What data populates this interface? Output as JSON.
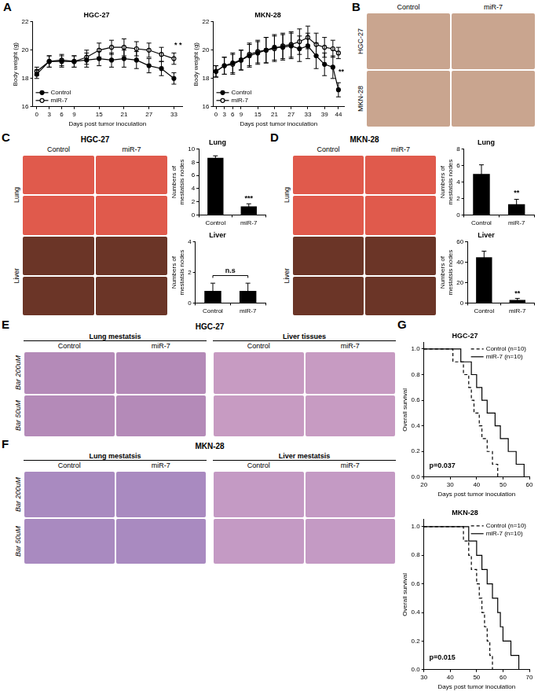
{
  "letters": [
    "A",
    "B",
    "C",
    "D",
    "E",
    "F",
    "G"
  ],
  "images": [
    {
      "groups": [
        {
          "columns": [
            "Control",
            "miR-7"
          ],
          "color": "#c9a58f"
        }
      ],
      "rows": [
        {
          "label": "HGC-27",
          "count": 1
        },
        {
          "label": "MKN-28",
          "count": 1
        }
      ]
    },
    {
      "title": "HGC-27",
      "groups": [
        {
          "columns": [
            "Control",
            "miR-7"
          ]
        }
      ],
      "rows": [
        {
          "label": "Lung",
          "count": 2,
          "color": "#e05a4c"
        },
        {
          "label": "Liver",
          "count": 2,
          "color": "#6b3527"
        }
      ]
    },
    {
      "title": "MKN-28",
      "groups": [
        {
          "columns": [
            "Control",
            "miR-7"
          ]
        }
      ],
      "rows": [
        {
          "label": "Lung",
          "count": 2,
          "color": "#e05a4c"
        },
        {
          "label": "Liver",
          "count": 2,
          "color": "#6b3527"
        }
      ]
    },
    {
      "title": "HGC-27",
      "groups": [
        {
          "heading": "Lung mestatsis",
          "columns": [
            "Control",
            "miR-7"
          ],
          "color": "#b48ab8"
        },
        {
          "heading": "Liver tissues",
          "columns": [
            "Control",
            "miR-7"
          ],
          "color": "#c79bc2"
        }
      ],
      "rows": [
        {
          "label": "Bar 200uM",
          "count": 1
        },
        {
          "label": "Bar 50uM",
          "count": 1
        }
      ]
    },
    {
      "title": "MKN-28",
      "groups": [
        {
          "heading": "Lung mestatsis",
          "columns": [
            "Control",
            "miR-7"
          ],
          "color": "#a98ac0"
        },
        {
          "heading": "Liver mestatsis",
          "columns": [
            "Control",
            "miR-7"
          ],
          "color": "#c49ac4"
        }
      ],
      "rows": [
        {
          "label": "Bar 200uM",
          "count": 1
        },
        {
          "label": "Bar 50uM",
          "count": 1
        }
      ]
    }
  ],
  "chart_data": [
    {
      "type": "line",
      "title": "HGC-27",
      "x_label": "Days post tumor inoculation",
      "y_label": "Body weight (g)",
      "x": [
        0,
        3,
        6,
        9,
        12,
        15,
        18,
        21,
        24,
        27,
        30,
        33
      ],
      "series": [
        {
          "name": "Control",
          "color": "#000000",
          "marker": "circle",
          "line_style": "solid",
          "values": [
            18.3,
            19.2,
            19.2,
            19.2,
            19.3,
            19.4,
            19.3,
            19.4,
            19.3,
            18.9,
            18.7,
            18.0
          ],
          "error": [
            0.3,
            0.4,
            0.4,
            0.4,
            0.5,
            0.5,
            0.5,
            0.6,
            0.6,
            0.5,
            0.5,
            0.4
          ]
        },
        {
          "name": "miR-7",
          "color": "#000000",
          "marker": "open_circle",
          "line_style": "solid",
          "values": [
            18.5,
            19.2,
            19.3,
            19.2,
            19.5,
            20.0,
            20.2,
            20.2,
            20.1,
            20.0,
            19.7,
            19.4
          ],
          "error": [
            0.3,
            0.4,
            0.4,
            0.4,
            0.5,
            0.5,
            0.5,
            0.6,
            0.5,
            0.5,
            0.5,
            0.4
          ]
        }
      ],
      "xlim": [
        -1,
        35
      ],
      "xticks": [
        0,
        3,
        6,
        9,
        15,
        21,
        27,
        33
      ],
      "ylim": [
        16,
        22
      ],
      "yticks": [
        16,
        18,
        20,
        22
      ],
      "grid": false,
      "legend": "lower left",
      "annotations": [
        {
          "text": "* *",
          "x": 34,
          "y": 20.1
        }
      ]
    },
    {
      "type": "line",
      "title": "MKN-28",
      "x_label": "Days post tumor inoculation",
      "y_label": "Body weight (g)",
      "x": [
        0,
        3,
        6,
        9,
        12,
        15,
        18,
        21,
        24,
        27,
        30,
        33,
        36,
        39,
        42,
        44
      ],
      "series": [
        {
          "name": "Control",
          "color": "#000000",
          "marker": "circle",
          "line_style": "solid",
          "values": [
            18.5,
            18.9,
            19.1,
            19.3,
            19.6,
            19.8,
            20.0,
            20.2,
            20.2,
            20.3,
            20.1,
            20.3,
            19.6,
            19.0,
            18.8,
            17.2
          ],
          "error": [
            0.4,
            0.6,
            0.7,
            0.7,
            0.8,
            0.8,
            0.9,
            0.9,
            0.9,
            0.9,
            0.9,
            0.9,
            0.9,
            0.8,
            0.8,
            0.5
          ]
        },
        {
          "name": "miR-7",
          "color": "#000000",
          "marker": "open_circle",
          "line_style": "solid",
          "values": [
            18.5,
            18.9,
            19.0,
            19.3,
            19.7,
            19.9,
            20.0,
            20.1,
            20.3,
            20.4,
            20.6,
            20.9,
            20.4,
            20.2,
            20.1,
            19.8
          ],
          "error": [
            0.4,
            0.6,
            0.7,
            0.7,
            0.8,
            0.8,
            0.9,
            0.9,
            0.9,
            0.9,
            0.9,
            0.8,
            0.8,
            0.7,
            0.6,
            0.4
          ]
        }
      ],
      "xlim": [
        -1,
        46
      ],
      "xticks": [
        0,
        3,
        6,
        9,
        15,
        21,
        27,
        33,
        39,
        44
      ],
      "ylim": [
        16,
        22
      ],
      "yticks": [
        16,
        18,
        20,
        22
      ],
      "grid": false,
      "legend": "lower left",
      "annotations": [
        {
          "text": "**",
          "x": 45,
          "y": 18.2
        }
      ]
    },
    {
      "type": "bar",
      "title": "Lung",
      "y_label": "Numbers of mestatsis nodes",
      "categories": [
        "Control",
        "miR-7"
      ],
      "values": [
        8.7,
        1.3
      ],
      "error": [
        0.3,
        0.4
      ],
      "color": "#000000",
      "ylim": [
        0,
        10
      ],
      "yticks": [
        0,
        2,
        4,
        6,
        8,
        10
      ],
      "grid": false,
      "annotations": [
        {
          "text": "***",
          "x": "miR-7",
          "y": 2.0
        }
      ]
    },
    {
      "type": "bar",
      "title": "Liver",
      "y_label": "Numbers of mestatsis nodes",
      "categories": [
        "Control",
        "miR-7"
      ],
      "values": [
        0.8,
        0.8
      ],
      "error": [
        0.5,
        0.5
      ],
      "color": "#000000",
      "ylim": [
        0,
        4
      ],
      "yticks": [
        0,
        2,
        4
      ],
      "grid": false,
      "annotations": [
        {
          "text": "n.s",
          "x": [
            "Control",
            "miR-7"
          ],
          "y": 1.8
        }
      ]
    },
    {
      "type": "bar",
      "title": "Lung",
      "y_label": "Numbers of mestatsis nodes",
      "categories": [
        "Control",
        "miR-7"
      ],
      "values": [
        5.0,
        1.3
      ],
      "error": [
        1.1,
        0.6
      ],
      "color": "#000000",
      "ylim": [
        0,
        8
      ],
      "yticks": [
        0,
        2,
        4,
        6,
        8
      ],
      "grid": false,
      "annotations": [
        {
          "text": "**",
          "x": "miR-7",
          "y": 2.2
        }
      ]
    },
    {
      "type": "bar",
      "title": "Liver",
      "y_label": "Numbers of mestatsis nodes",
      "categories": [
        "Control",
        "miR-7"
      ],
      "values": [
        45,
        3
      ],
      "error": [
        6,
        1.5
      ],
      "color": "#000000",
      "ylim": [
        0,
        60
      ],
      "yticks": [
        0,
        20,
        40,
        60
      ],
      "grid": false,
      "annotations": [
        {
          "text": "**",
          "x": "miR-7",
          "y": 6
        }
      ]
    },
    {
      "type": "step",
      "title": "HGC-27",
      "x_label": "Days post tumor inoculation",
      "y_label": "Overall survival",
      "series": [
        {
          "name": "Control (n=10)",
          "color": "#000000",
          "marker": "none",
          "line_style": "dashed",
          "x": [
            20,
            31,
            35,
            37,
            38,
            39,
            41,
            42,
            44,
            46,
            48
          ],
          "values": [
            1.0,
            0.9,
            0.8,
            0.7,
            0.6,
            0.5,
            0.4,
            0.3,
            0.2,
            0.1,
            0.0
          ]
        },
        {
          "name": "miR-7 (n=10)",
          "color": "#000000",
          "marker": "none",
          "line_style": "solid",
          "x": [
            20,
            34,
            38,
            40,
            42,
            44,
            47,
            49,
            52,
            55,
            58
          ],
          "values": [
            1.0,
            0.9,
            0.8,
            0.7,
            0.6,
            0.5,
            0.4,
            0.3,
            0.2,
            0.1,
            0.0
          ]
        }
      ],
      "xlim": [
        20,
        60
      ],
      "xticks": [
        20,
        30,
        40,
        50,
        60
      ],
      "ylim": [
        0,
        1.05
      ],
      "yticks": [
        {
          "value": 0,
          "label": "0.0"
        },
        {
          "value": 0.2,
          "label": "0.2"
        },
        {
          "value": 0.4,
          "label": "0.4"
        },
        {
          "value": 0.6,
          "label": "0.6"
        },
        {
          "value": 0.8,
          "label": "0.8"
        },
        {
          "value": 1,
          "label": "1.0"
        }
      ],
      "grid": false,
      "legend": "upper right",
      "annotations": [
        {
          "text": "p=0.037",
          "x": 27,
          "y": 0.06
        }
      ]
    },
    {
      "type": "step",
      "title": "MKN-28",
      "x_label": "Days post tumor inoculation",
      "y_label": "Overall survival",
      "series": [
        {
          "name": "Control (n=10)",
          "color": "#000000",
          "marker": "none",
          "line_style": "dashed",
          "x": [
            30,
            45,
            47,
            48,
            50,
            51,
            52,
            53,
            54,
            55,
            56
          ],
          "values": [
            1.0,
            0.9,
            0.8,
            0.7,
            0.6,
            0.5,
            0.4,
            0.3,
            0.2,
            0.1,
            0.0
          ]
        },
        {
          "name": "miR-7 (n=10)",
          "color": "#000000",
          "marker": "none",
          "line_style": "solid",
          "x": [
            30,
            47,
            50,
            52,
            54,
            56,
            58,
            59,
            60,
            63,
            66
          ],
          "values": [
            1.0,
            0.9,
            0.8,
            0.7,
            0.6,
            0.5,
            0.4,
            0.3,
            0.2,
            0.1,
            0.0
          ]
        }
      ],
      "xlim": [
        30,
        70
      ],
      "xticks": [
        30,
        40,
        50,
        60,
        70
      ],
      "ylim": [
        0,
        1.05
      ],
      "yticks": [
        {
          "value": 0,
          "label": "0.0"
        },
        {
          "value": 0.2,
          "label": "0.2"
        },
        {
          "value": 0.4,
          "label": "0.4"
        },
        {
          "value": 0.6,
          "label": "0.6"
        },
        {
          "value": 0.8,
          "label": "0.8"
        },
        {
          "value": 1,
          "label": "1.0"
        }
      ],
      "grid": false,
      "legend": "upper right",
      "annotations": [
        {
          "text": "p=0.015",
          "x": 37,
          "y": 0.06
        }
      ]
    }
  ]
}
